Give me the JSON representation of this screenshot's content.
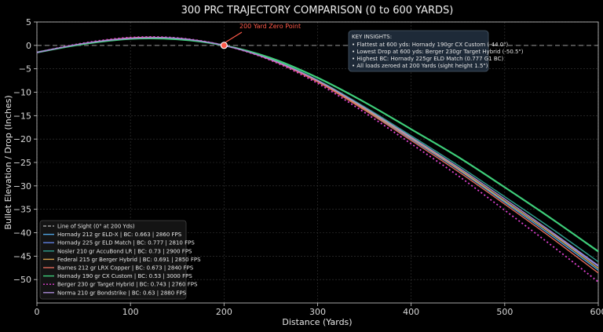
{
  "chart_data": {
    "type": "line",
    "title": "300 PRC TRAJECTORY COMPARISON (0 to 600 YARDS)",
    "xlabel": "Distance (Yards)",
    "ylabel": "Bullet Elevation / Drop (Inches)",
    "xlim": [
      0,
      600
    ],
    "ylim": [
      -55,
      5
    ],
    "xticks": [
      0,
      100,
      200,
      300,
      400,
      500,
      600
    ],
    "yticks": [
      5,
      0,
      -5,
      -10,
      -15,
      -20,
      -25,
      -30,
      -35,
      -40,
      -45,
      -50
    ],
    "grid": true,
    "legend_position": "bottom-left",
    "colors": {
      "background": "#000000",
      "grid": "#3a3a3a",
      "zero_marker": "#ff5a4a",
      "insight_box": "#1e2a38"
    },
    "line_of_sight": {
      "label": "Line of Sight (0\" at 200 Yds)",
      "y": 0,
      "color": "#9a9a9a"
    },
    "annotation": {
      "text": "200 Yard Zero Point",
      "x": 200,
      "y": 0
    },
    "insights": {
      "title": "KEY INSIGHTS:",
      "lines": [
        "• Flattest at 600 yds: Hornady 190gr CX Custom (-44.0\")",
        "• Lowest Drop at 600 yds: Berger 230gr Target Hybrid (-50.5\")",
        "• Highest BC: Hornady 225gr ELD Match (0.777 G1 BC)",
        "• All loads zeroed at 200 Yards (sight height 1.5\")"
      ]
    },
    "x": [
      0,
      50,
      100,
      150,
      200,
      250,
      300,
      350,
      400,
      450,
      500,
      550,
      600
    ],
    "series": [
      {
        "name": "Hornady 212 gr ELD-X | BC: 0.663 | 2860 FPS",
        "color": "#4fa3e0",
        "dash": false,
        "values": [
          -1.5,
          0.4,
          1.6,
          1.5,
          0,
          -3.0,
          -7.6,
          -13.6,
          -20.0,
          -26.5,
          -33.5,
          -40.6,
          -48.0
        ]
      },
      {
        "name": "Hornady 225 gr ELD Match | BC: 0.777 | 2810 FPS",
        "color": "#5f7fe0",
        "dash": false,
        "values": [
          -1.5,
          0.4,
          1.6,
          1.5,
          0,
          -3.0,
          -7.7,
          -13.5,
          -19.9,
          -26.4,
          -33.2,
          -40.1,
          -47.2
        ]
      },
      {
        "name": "Nosler 210 gr AccuBond LR | BC: 0.73 | 2900 FPS",
        "color": "#2e9e8e",
        "dash": false,
        "values": [
          -1.5,
          0.4,
          1.5,
          1.4,
          0,
          -2.9,
          -7.4,
          -13.1,
          -19.3,
          -25.6,
          -32.3,
          -39.1,
          -46.2
        ]
      },
      {
        "name": "Federal 215 gr Berger Hybrid | BC: 0.691 | 2850 FPS",
        "color": "#d4a24a",
        "dash": false,
        "values": [
          -1.5,
          0.4,
          1.6,
          1.5,
          0,
          -3.0,
          -7.6,
          -13.5,
          -19.8,
          -26.3,
          -33.2,
          -40.2,
          -47.6
        ]
      },
      {
        "name": "Barnes 212 gr LRX Copper | BC: 0.673 | 2840 FPS",
        "color": "#e06a5a",
        "dash": false,
        "values": [
          -1.5,
          0.4,
          1.6,
          1.5,
          0,
          -3.1,
          -7.8,
          -13.8,
          -20.3,
          -26.9,
          -33.9,
          -41.1,
          -48.6
        ]
      },
      {
        "name": "Hornady 190 gr CX Custom | BC: 0.53 | 3000 FPS",
        "color": "#3ecf7a",
        "dash": false,
        "values": [
          -1.5,
          0.3,
          1.4,
          1.3,
          0,
          -2.7,
          -6.9,
          -12.1,
          -17.9,
          -23.8,
          -30.3,
          -37.0,
          -44.0
        ]
      },
      {
        "name": "Berger 230 gr Target Hybrid | BC: 0.743 | 2760 FPS",
        "color": "#e040d0",
        "dash": true,
        "values": [
          -1.5,
          0.5,
          1.7,
          1.6,
          0,
          -3.2,
          -8.1,
          -14.3,
          -21.0,
          -27.8,
          -35.2,
          -42.7,
          -50.5
        ]
      },
      {
        "name": "Norma 210 gr Bondstrike | BC: 0.63 | 2880 FPS",
        "color": "#a98ad8",
        "dash": false,
        "values": [
          -1.5,
          0.4,
          1.5,
          1.5,
          0,
          -3.0,
          -7.5,
          -13.3,
          -19.6,
          -26.0,
          -32.8,
          -39.8,
          -47.0
        ]
      }
    ]
  }
}
